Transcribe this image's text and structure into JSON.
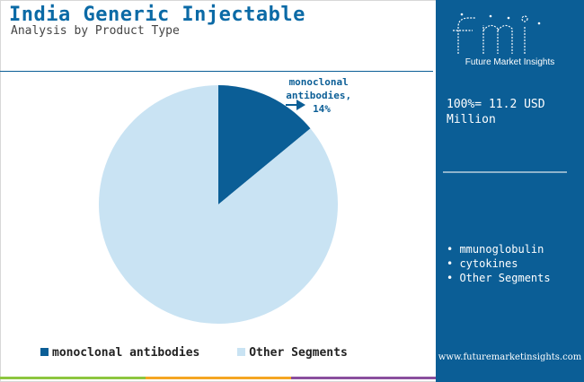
{
  "header": {
    "title": "India Generic Injectable",
    "subtitle": "Analysis by Product Type"
  },
  "chart_data": {
    "type": "pie",
    "title": "India Generic Injectable",
    "subtitle": "Analysis by Product Type",
    "slices": [
      {
        "name": "monoclonal antibodies",
        "value": 14,
        "color": "#0b5e96",
        "label_lines": [
          "monoclonal",
          "antibodies,",
          "14%"
        ]
      },
      {
        "name": "Other Segments",
        "value": 86,
        "color": "#c9e3f3"
      }
    ],
    "legend": [
      "monoclonal antibodies",
      "Other Segments"
    ],
    "legend_position": "bottom"
  },
  "side_panel": {
    "brand": "fmi",
    "brand_tagline": "Future Market Insights",
    "total_text": "100%= 11.2 USD Million",
    "segments": [
      "mmunoglobulin",
      "cytokines",
      "Other Segments"
    ],
    "url": "www.futuremarketinsights.com"
  },
  "colors": {
    "accent": "#0b5e96",
    "title": "#0b6aa6",
    "light_slice": "#c9e3f3",
    "bar_green": "#8dc63f",
    "bar_orange": "#f5a623",
    "bar_purple": "#8a4f9e"
  }
}
